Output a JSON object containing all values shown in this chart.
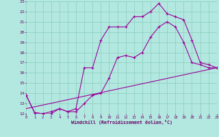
{
  "xlabel": "Windchill (Refroidissement éolien,°C)",
  "xlim": [
    0,
    23
  ],
  "ylim": [
    12,
    23
  ],
  "yticks": [
    12,
    13,
    14,
    15,
    16,
    17,
    18,
    19,
    20,
    21,
    22,
    23
  ],
  "xticks": [
    0,
    1,
    2,
    3,
    4,
    5,
    6,
    7,
    8,
    9,
    10,
    11,
    12,
    13,
    14,
    15,
    16,
    17,
    18,
    19,
    20,
    21,
    22,
    23
  ],
  "bg_color": "#b3e8e0",
  "line_color": "#990099",
  "grid_color": "#88ccbb",
  "line1_x": [
    0,
    1,
    2,
    3,
    4,
    5,
    6,
    7,
    8,
    9,
    10,
    11,
    12,
    13,
    14,
    15,
    16,
    17,
    18,
    19,
    20,
    21,
    22,
    23
  ],
  "line1_y": [
    13.8,
    12.1,
    12.0,
    12.0,
    12.5,
    12.2,
    12.2,
    13.0,
    13.8,
    14.0,
    15.5,
    17.5,
    17.7,
    17.5,
    18.0,
    19.5,
    20.5,
    21.0,
    20.5,
    19.0,
    17.0,
    16.8,
    16.5,
    16.5
  ],
  "line2_x": [
    0,
    1,
    2,
    3,
    4,
    5,
    6,
    7,
    8,
    9,
    10,
    11,
    12,
    13,
    14,
    15,
    16,
    17,
    18,
    19,
    20,
    21,
    22,
    23
  ],
  "line2_y": [
    13.8,
    12.1,
    12.0,
    12.2,
    12.5,
    12.2,
    12.5,
    16.5,
    16.5,
    19.2,
    20.5,
    20.5,
    20.5,
    21.5,
    21.5,
    22.0,
    22.8,
    21.8,
    21.5,
    21.2,
    19.2,
    17.0,
    16.8,
    16.5
  ],
  "line3_x": [
    0,
    23
  ],
  "line3_y": [
    12.5,
    16.5
  ],
  "marker": "+",
  "markersize": 3,
  "linewidth": 0.8
}
